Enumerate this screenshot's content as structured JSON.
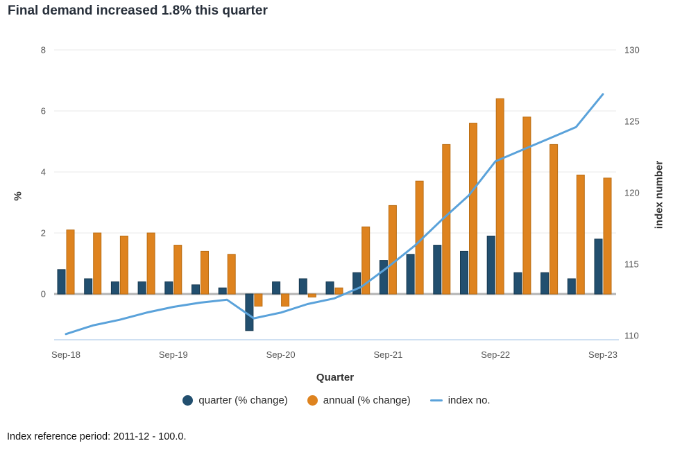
{
  "title": "Final demand increased 1.8% this quarter",
  "footer": "Index reference period: 2011-12 - 100.0.",
  "chart_data": {
    "type": "bar",
    "subtype": "grouped-bars-with-line-overlay-dual-axis",
    "title": "Final demand increased 1.8% this quarter",
    "xlabel": "Quarter",
    "grid": "horizontal",
    "legend_position": "bottom",
    "zero_line_color": "#b3b3b3",
    "categories": [
      "Sep-18",
      "Dec-18",
      "Mar-19",
      "Jun-19",
      "Sep-19",
      "Dec-19",
      "Mar-20",
      "Jun-20",
      "Sep-20",
      "Dec-20",
      "Mar-21",
      "Jun-21",
      "Sep-21",
      "Dec-21",
      "Mar-22",
      "Jun-22",
      "Sep-22",
      "Dec-22",
      "Mar-23",
      "Jun-23",
      "Sep-23"
    ],
    "x_ticks": [
      "Sep-18",
      "Sep-19",
      "Sep-20",
      "Sep-21",
      "Sep-22",
      "Sep-23"
    ],
    "left_axis": {
      "label": "%",
      "ticks": [
        8,
        6,
        4,
        2,
        0
      ],
      "range": [
        -1.5,
        8
      ]
    },
    "right_axis": {
      "label": "index number",
      "ticks": [
        130,
        125,
        120,
        115,
        110
      ],
      "range": [
        109.7,
        130
      ]
    },
    "series": [
      {
        "name": "quarter (% change)",
        "kind": "bar",
        "axis": "left",
        "color": "#224f6f",
        "values": [
          0.8,
          0.5,
          0.4,
          0.4,
          0.4,
          0.3,
          0.2,
          -1.2,
          0.4,
          0.5,
          0.4,
          0.7,
          1.1,
          1.3,
          1.6,
          1.4,
          1.9,
          0.7,
          0.7,
          0.5,
          1.8
        ]
      },
      {
        "name": "annual (% change)",
        "kind": "bar",
        "axis": "left",
        "color": "#de831f",
        "values": [
          2.1,
          2.0,
          1.9,
          2.0,
          1.6,
          1.4,
          1.3,
          -0.4,
          -0.4,
          -0.1,
          0.2,
          2.2,
          2.9,
          3.7,
          4.9,
          5.6,
          6.4,
          5.8,
          4.9,
          3.9,
          3.8
        ]
      },
      {
        "name": "index no.",
        "kind": "line",
        "axis": "right",
        "color": "#5aa2da",
        "values": [
          110.1,
          110.7,
          111.1,
          111.6,
          112.0,
          112.3,
          112.5,
          111.2,
          111.6,
          112.2,
          112.6,
          113.4,
          114.8,
          116.3,
          118.1,
          119.8,
          122.2,
          123.0,
          123.8,
          124.6,
          126.9
        ]
      }
    ]
  }
}
